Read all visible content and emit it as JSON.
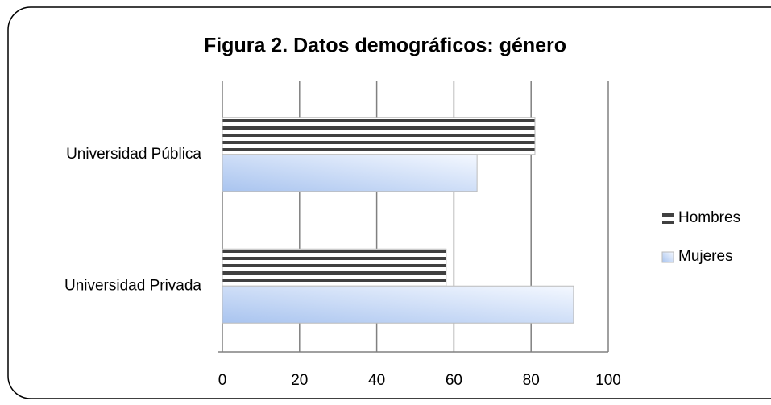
{
  "chart_data": {
    "type": "barh",
    "title": "Figura 2. Datos demográficos: género",
    "categories": [
      "Universidad Pública",
      "Universidad Privada"
    ],
    "series": [
      {
        "name": "Hombres",
        "color": "#404040",
        "values": [
          81,
          58
        ]
      },
      {
        "name": "Mujeres",
        "color": "#a9c4ef",
        "values": [
          66,
          91
        ]
      }
    ],
    "xlim": [
      0,
      100
    ],
    "xticks": [
      0,
      20,
      40,
      60,
      80,
      100
    ],
    "grid": true,
    "legend": "right"
  }
}
